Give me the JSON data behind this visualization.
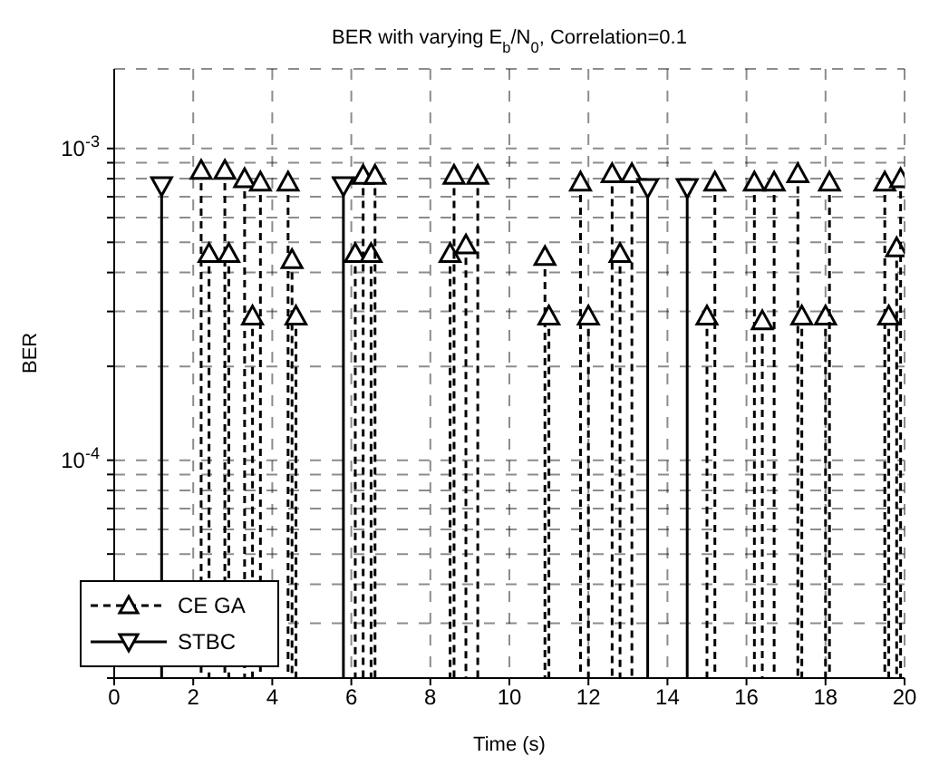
{
  "chart_data": {
    "type": "lollipop",
    "title": "BER with varying E$_{b}$/N$_{0}$, Correlation=0.1",
    "xlabel": "Time (s)",
    "ylabel": "BER",
    "log": "y",
    "grid": true,
    "legend": "bottom left",
    "xlim": [
      0,
      20
    ],
    "xticks": [
      0,
      2,
      4,
      6,
      8,
      10,
      12,
      14,
      16,
      18,
      20
    ],
    "ylim": [
      2e-05,
      0.0018
    ],
    "yticks": [
      {
        "value": 2e-05,
        "label": null
      },
      {
        "value": 3e-05,
        "label": null
      },
      {
        "value": 4e-05,
        "label": null
      },
      {
        "value": 5e-05,
        "label": null
      },
      {
        "value": 6e-05,
        "label": null
      },
      {
        "value": 7e-05,
        "label": null
      },
      {
        "value": 8e-05,
        "label": null
      },
      {
        "value": 9e-05,
        "label": null
      },
      {
        "value": 0.0001,
        "label": "10$^{-4}$"
      },
      {
        "value": 0.0002,
        "label": null
      },
      {
        "value": 0.0003,
        "label": null
      },
      {
        "value": 0.0004,
        "label": null
      },
      {
        "value": 0.0005,
        "label": null
      },
      {
        "value": 0.0006,
        "label": null
      },
      {
        "value": 0.0007,
        "label": null
      },
      {
        "value": 0.0008,
        "label": null
      },
      {
        "value": 0.0009,
        "label": null
      },
      {
        "value": 0.001,
        "label": "10$^{-3}$"
      }
    ],
    "series": [
      {
        "name": "CE GA",
        "color": "#000000",
        "line_style": "dashed",
        "marker": "triangle",
        "x": [
          2.2,
          2.4,
          2.8,
          2.9,
          3.3,
          3.5,
          3.7,
          4.4,
          4.5,
          4.6,
          6.1,
          6.3,
          6.5,
          6.6,
          8.5,
          8.6,
          8.9,
          9.2,
          10.9,
          11.0,
          11.8,
          12.0,
          12.6,
          12.8,
          13.1,
          15.0,
          15.2,
          16.2,
          16.4,
          16.7,
          17.3,
          17.4,
          18.0,
          18.1,
          19.5,
          19.6,
          19.8,
          19.9
        ],
        "values": [
          0.00085,
          0.00046,
          0.00085,
          0.00046,
          0.0008,
          0.00029,
          0.00078,
          0.00078,
          0.00044,
          0.00029,
          0.00046,
          0.00082,
          0.00046,
          0.00082,
          0.00046,
          0.00082,
          0.00049,
          0.00082,
          0.00045,
          0.00029,
          0.00078,
          0.00029,
          0.00083,
          0.00046,
          0.00083,
          0.00029,
          0.00078,
          0.00078,
          0.00028,
          0.00078,
          0.00083,
          0.00029,
          0.00029,
          0.00078,
          0.00078,
          0.00029,
          0.00048,
          0.0008
        ]
      },
      {
        "name": "STBC",
        "color": "#000000",
        "line_style": "solid",
        "marker": "triangle-down",
        "x": [
          1.2,
          5.8,
          13.5,
          14.5
        ],
        "values": [
          0.00076,
          0.00076,
          0.00075,
          0.00075
        ]
      }
    ]
  }
}
